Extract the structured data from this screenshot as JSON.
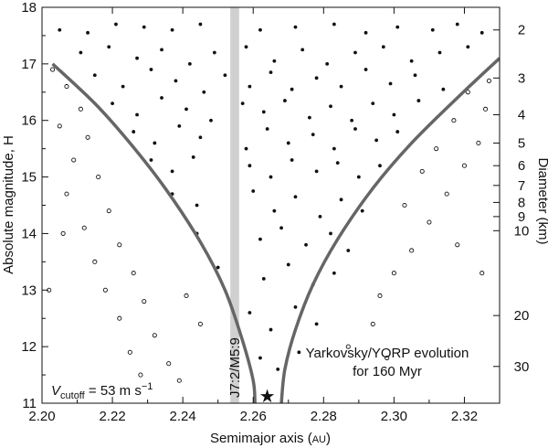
{
  "chart_data": {
    "type": "scatter",
    "title": "",
    "xlabel": "Semimajor axis (AU)",
    "ylabel": "Absolute magnitude, H",
    "y2label": "Diameter (km)",
    "xlim": [
      2.2,
      2.33
    ],
    "ylim": [
      11,
      18
    ],
    "x_ticks": [
      "2.20",
      "2.22",
      "2.24",
      "2.26",
      "2.28",
      "2.30",
      "2.32"
    ],
    "y_ticks": [
      "11",
      "12",
      "13",
      "14",
      "15",
      "16",
      "17",
      "18"
    ],
    "diameter_ticks": [
      {
        "label": "2",
        "H": 17.6
      },
      {
        "label": "3",
        "H": 16.75
      },
      {
        "label": "4",
        "H": 16.1
      },
      {
        "label": "5",
        "H": 15.6
      },
      {
        "label": "6",
        "H": 15.2
      },
      {
        "label": "7",
        "H": 14.85
      },
      {
        "label": "8",
        "H": 14.55
      },
      {
        "label": "9",
        "H": 14.3
      },
      {
        "label": "10",
        "H": 14.05
      },
      {
        "label": "20",
        "H": 12.55
      },
      {
        "label": "30",
        "H": 11.65
      }
    ],
    "resonance_band": {
      "label": "J7:2/M5:9",
      "x_range": [
        2.2535,
        2.256
      ],
      "color": "#d0d0d0"
    },
    "family_center": {
      "x": 2.264,
      "H": 11.1,
      "marker": "star"
    },
    "v_cutoff_text": {
      "symbol": "V",
      "subscript": "cutoff",
      "rest": " = 53 m s",
      "superscript": "−1"
    },
    "evolution_text": [
      "Yarkovsky/YORP evolution",
      "for 160 Myr"
    ],
    "envelope": {
      "color": "#666666",
      "left": [
        [
          2.203,
          17.0
        ],
        [
          2.215,
          16.3
        ],
        [
          2.225,
          15.6
        ],
        [
          2.235,
          14.8
        ],
        [
          2.245,
          13.85
        ],
        [
          2.252,
          13.0
        ],
        [
          2.257,
          12.1
        ],
        [
          2.26,
          11.4
        ],
        [
          2.2605,
          11.0
        ]
      ],
      "right": [
        [
          2.268,
          11.0
        ],
        [
          2.269,
          11.6
        ],
        [
          2.272,
          12.3
        ],
        [
          2.277,
          13.1
        ],
        [
          2.284,
          13.9
        ],
        [
          2.294,
          14.8
        ],
        [
          2.305,
          15.6
        ],
        [
          2.318,
          16.4
        ],
        [
          2.33,
          17.1
        ]
      ]
    },
    "series": [
      {
        "marker": "filled",
        "note": "Family members (dense inside envelope)",
        "points": [
          [
            2.205,
            17.6
          ],
          [
            2.213,
            17.55
          ],
          [
            2.221,
            17.7
          ],
          [
            2.229,
            17.65
          ],
          [
            2.237,
            17.6
          ],
          [
            2.245,
            17.7
          ],
          [
            2.262,
            17.6
          ],
          [
            2.272,
            17.65
          ],
          [
            2.283,
            17.7
          ],
          [
            2.292,
            17.55
          ],
          [
            2.301,
            17.65
          ],
          [
            2.311,
            17.6
          ],
          [
            2.318,
            17.7
          ],
          [
            2.325,
            17.55
          ],
          [
            2.211,
            17.2
          ],
          [
            2.219,
            17.3
          ],
          [
            2.227,
            17.1
          ],
          [
            2.234,
            17.25
          ],
          [
            2.242,
            17.0
          ],
          [
            2.249,
            17.2
          ],
          [
            2.258,
            17.3
          ],
          [
            2.266,
            17.05
          ],
          [
            2.274,
            17.25
          ],
          [
            2.281,
            17.0
          ],
          [
            2.289,
            17.2
          ],
          [
            2.297,
            17.3
          ],
          [
            2.305,
            17.05
          ],
          [
            2.313,
            17.2
          ],
          [
            2.321,
            17.3
          ],
          [
            2.215,
            16.8
          ],
          [
            2.223,
            16.6
          ],
          [
            2.231,
            16.9
          ],
          [
            2.238,
            16.7
          ],
          [
            2.246,
            16.5
          ],
          [
            2.252,
            16.8
          ],
          [
            2.259,
            16.6
          ],
          [
            2.265,
            16.85
          ],
          [
            2.271,
            16.55
          ],
          [
            2.278,
            16.75
          ],
          [
            2.285,
            16.6
          ],
          [
            2.292,
            16.9
          ],
          [
            2.299,
            16.65
          ],
          [
            2.306,
            16.8
          ],
          [
            2.314,
            16.55
          ],
          [
            2.22,
            16.3
          ],
          [
            2.227,
            16.1
          ],
          [
            2.234,
            16.4
          ],
          [
            2.241,
            16.2
          ],
          [
            2.248,
            16.0
          ],
          [
            2.257,
            16.3
          ],
          [
            2.263,
            16.15
          ],
          [
            2.269,
            16.35
          ],
          [
            2.276,
            16.05
          ],
          [
            2.282,
            16.25
          ],
          [
            2.288,
            16.0
          ],
          [
            2.294,
            16.3
          ],
          [
            2.3,
            16.1
          ],
          [
            2.307,
            16.35
          ],
          [
            2.226,
            15.8
          ],
          [
            2.232,
            15.6
          ],
          [
            2.239,
            15.9
          ],
          [
            2.245,
            15.7
          ],
          [
            2.258,
            15.5
          ],
          [
            2.264,
            15.85
          ],
          [
            2.27,
            15.6
          ],
          [
            2.277,
            15.75
          ],
          [
            2.283,
            15.5
          ],
          [
            2.289,
            15.85
          ],
          [
            2.295,
            15.65
          ],
          [
            2.301,
            15.8
          ],
          [
            2.231,
            15.3
          ],
          [
            2.237,
            15.1
          ],
          [
            2.243,
            15.35
          ],
          [
            2.259,
            15.2
          ],
          [
            2.265,
            15.0
          ],
          [
            2.271,
            15.3
          ],
          [
            2.278,
            15.1
          ],
          [
            2.284,
            15.25
          ],
          [
            2.29,
            15.0
          ],
          [
            2.296,
            15.2
          ],
          [
            2.237,
            14.7
          ],
          [
            2.244,
            14.5
          ],
          [
            2.26,
            14.75
          ],
          [
            2.266,
            14.4
          ],
          [
            2.272,
            14.65
          ],
          [
            2.279,
            14.3
          ],
          [
            2.285,
            14.6
          ],
          [
            2.291,
            14.4
          ],
          [
            2.244,
            14.0
          ],
          [
            2.262,
            13.9
          ],
          [
            2.268,
            14.1
          ],
          [
            2.275,
            13.8
          ],
          [
            2.282,
            14.0
          ],
          [
            2.287,
            13.7
          ],
          [
            2.25,
            13.4
          ],
          [
            2.263,
            13.2
          ],
          [
            2.27,
            13.45
          ],
          [
            2.277,
            13.1
          ],
          [
            2.283,
            13.3
          ],
          [
            2.259,
            12.6
          ],
          [
            2.265,
            12.3
          ],
          [
            2.272,
            12.7
          ],
          [
            2.278,
            12.4
          ],
          [
            2.262,
            11.8
          ],
          [
            2.267,
            11.6
          ],
          [
            2.273,
            11.9
          ]
        ]
      },
      {
        "marker": "open",
        "note": "Background objects (outside envelope)",
        "points": [
          [
            2.203,
            16.9
          ],
          [
            2.207,
            16.6
          ],
          [
            2.211,
            16.2
          ],
          [
            2.205,
            15.9
          ],
          [
            2.213,
            15.7
          ],
          [
            2.209,
            15.3
          ],
          [
            2.216,
            15.0
          ],
          [
            2.207,
            14.7
          ],
          [
            2.219,
            14.4
          ],
          [
            2.212,
            14.1
          ],
          [
            2.222,
            13.8
          ],
          [
            2.215,
            13.5
          ],
          [
            2.226,
            13.3
          ],
          [
            2.218,
            13.0
          ],
          [
            2.229,
            12.8
          ],
          [
            2.222,
            12.5
          ],
          [
            2.232,
            12.2
          ],
          [
            2.225,
            11.9
          ],
          [
            2.236,
            11.7
          ],
          [
            2.228,
            11.5
          ],
          [
            2.241,
            12.9
          ],
          [
            2.245,
            12.4
          ],
          [
            2.239,
            11.4
          ],
          [
            2.202,
            13.0
          ],
          [
            2.206,
            14.0
          ],
          [
            2.296,
            12.9
          ],
          [
            2.3,
            13.3
          ],
          [
            2.305,
            13.7
          ],
          [
            2.31,
            14.2
          ],
          [
            2.303,
            14.5
          ],
          [
            2.315,
            14.7
          ],
          [
            2.308,
            15.1
          ],
          [
            2.32,
            15.2
          ],
          [
            2.312,
            15.5
          ],
          [
            2.324,
            15.6
          ],
          [
            2.317,
            16.0
          ],
          [
            2.326,
            16.2
          ],
          [
            2.321,
            16.5
          ],
          [
            2.327,
            16.7
          ],
          [
            2.294,
            12.4
          ],
          [
            2.287,
            12.0
          ],
          [
            2.298,
            11.8
          ],
          [
            2.318,
            13.8
          ],
          [
            2.325,
            13.3
          ]
        ]
      }
    ]
  }
}
